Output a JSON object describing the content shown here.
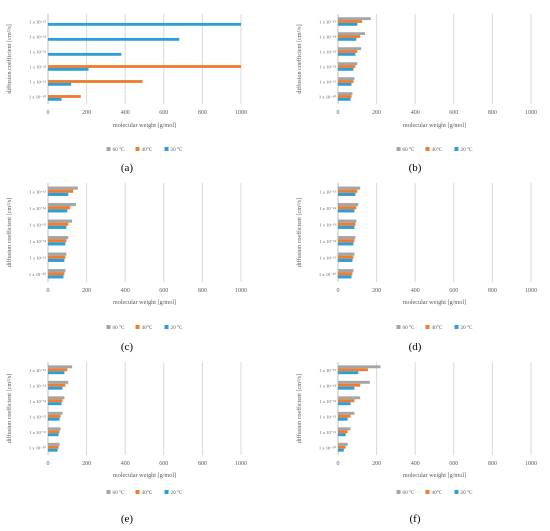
{
  "figure": {
    "ylabel": "diffusion coefficient [cm²/s]",
    "xlabel": "molecular weight [g/mol]",
    "xticks": [
      0,
      200,
      400,
      600,
      800,
      1000
    ],
    "categories": [
      "1 x 10⁻¹⁰",
      "1 x 10⁻¹¹",
      "1 x 10⁻¹²",
      "1 x 10⁻¹³",
      "1 x 10⁻¹⁴",
      "1 x 10⁻¹⁵"
    ],
    "legend": [
      "60 °C",
      "40°C",
      "20 °C"
    ],
    "colors": {
      "60 °C": "#a5a5a5",
      "40°C": "#ed7d31",
      "20 °C": "#2e9fd6",
      "grid": "#d9d9d9",
      "axis": "#bfbfbf",
      "text": "#595959"
    }
  },
  "chart_data": [
    {
      "panel": "(a)",
      "type": "bar",
      "orientation": "horizontal",
      "categories": [
        "1 x 10⁻¹⁰",
        "1 x 10⁻¹¹",
        "1 x 10⁻¹²",
        "1 x 10⁻¹³",
        "1 x 10⁻¹⁴",
        "1 x 10⁻¹⁵"
      ],
      "xlim": [
        0,
        1000
      ],
      "xlabel": "molecular weight [g/mol]",
      "ylabel": "diffusion coefficient [cm²/s]",
      "series": [
        {
          "name": "60 °C",
          "values": [
            0,
            0,
            0,
            0,
            0,
            0
          ]
        },
        {
          "name": "40°C",
          "values": [
            170,
            490,
            1000,
            0,
            0,
            0
          ]
        },
        {
          "name": "20 °C",
          "values": [
            70,
            120,
            210,
            380,
            680,
            1000
          ]
        }
      ]
    },
    {
      "panel": "(b)",
      "type": "bar",
      "orientation": "horizontal",
      "categories": [
        "1 x 10⁻¹⁰",
        "1 x 10⁻¹¹",
        "1 x 10⁻¹²",
        "1 x 10⁻¹³",
        "1 x 10⁻¹⁴",
        "1 x 10⁻¹⁵"
      ],
      "xlim": [
        0,
        1000
      ],
      "xlabel": "molecular weight [g/mol]",
      "ylabel": "diffusion coefficient [cm²/s]",
      "series": [
        {
          "name": "60 °C",
          "values": [
            75,
            85,
            100,
            120,
            140,
            170
          ]
        },
        {
          "name": "40°C",
          "values": [
            70,
            80,
            90,
            100,
            115,
            125
          ]
        },
        {
          "name": "20 °C",
          "values": [
            65,
            70,
            80,
            90,
            95,
            100
          ]
        }
      ]
    },
    {
      "panel": "(c)",
      "type": "bar",
      "orientation": "horizontal",
      "categories": [
        "1 x 10⁻¹⁰",
        "1 x 10⁻¹¹",
        "1 x 10⁻¹²",
        "1 x 10⁻¹³",
        "1 x 10⁻¹⁴",
        "1 x 10⁻¹⁵"
      ],
      "xlim": [
        0,
        1000
      ],
      "xlabel": "molecular weight [g/mol]",
      "ylabel": "diffusion coefficient [cm²/s]",
      "series": [
        {
          "name": "60 °C",
          "values": [
            90,
            95,
            105,
            125,
            145,
            155
          ]
        },
        {
          "name": "40°C",
          "values": [
            85,
            90,
            95,
            105,
            115,
            130
          ]
        },
        {
          "name": "20 °C",
          "values": [
            80,
            85,
            90,
            95,
            100,
            105
          ]
        }
      ]
    },
    {
      "panel": "(d)",
      "type": "bar",
      "orientation": "horizontal",
      "categories": [
        "1 x 10⁻¹⁰",
        "1 x 10⁻¹¹",
        "1 x 10⁻¹²",
        "1 x 10⁻¹³",
        "1 x 10⁻¹⁴",
        "1 x 10⁻¹⁵"
      ],
      "xlim": [
        0,
        1000
      ],
      "xlabel": "molecular weight [g/mol]",
      "ylabel": "diffusion coefficient [cm²/s]",
      "series": [
        {
          "name": "60 °C",
          "values": [
            80,
            85,
            90,
            95,
            105,
            115
          ]
        },
        {
          "name": "40°C",
          "values": [
            75,
            80,
            85,
            90,
            95,
            100
          ]
        },
        {
          "name": "20 °C",
          "values": [
            70,
            75,
            80,
            85,
            85,
            90
          ]
        }
      ]
    },
    {
      "panel": "(e)",
      "type": "bar",
      "orientation": "horizontal",
      "categories": [
        "1 x 10⁻¹⁰",
        "1 x 10⁻¹¹",
        "1 x 10⁻¹²",
        "1 x 10⁻¹³",
        "1 x 10⁻¹⁴",
        "1 x 10⁻¹⁵"
      ],
      "xlim": [
        0,
        1000
      ],
      "xlabel": "molecular weight [g/mol]",
      "ylabel": "diffusion coefficient [cm²/s]",
      "series": [
        {
          "name": "60 °C",
          "values": [
            60,
            65,
            75,
            85,
            105,
            125
          ]
        },
        {
          "name": "40°C",
          "values": [
            55,
            60,
            65,
            75,
            90,
            100
          ]
        },
        {
          "name": "20 °C",
          "values": [
            50,
            55,
            60,
            70,
            75,
            85
          ]
        }
      ]
    },
    {
      "panel": "(f)",
      "type": "bar",
      "orientation": "horizontal",
      "categories": [
        "1 x 10⁻¹⁰",
        "1 x 10⁻¹¹",
        "1 x 10⁻¹²",
        "1 x 10⁻¹³",
        "1 x 10⁻¹⁴",
        "1 x 10⁻¹⁵"
      ],
      "xlim": [
        0,
        1000
      ],
      "xlabel": "molecular weight [g/mol]",
      "ylabel": "diffusion coefficient [cm²/s]",
      "series": [
        {
          "name": "60 °C",
          "values": [
            50,
            65,
            85,
            115,
            165,
            220
          ]
        },
        {
          "name": "40°C",
          "values": [
            40,
            50,
            65,
            85,
            115,
            155
          ]
        },
        {
          "name": "20 °C",
          "values": [
            30,
            40,
            50,
            65,
            85,
            105
          ]
        }
      ]
    }
  ]
}
